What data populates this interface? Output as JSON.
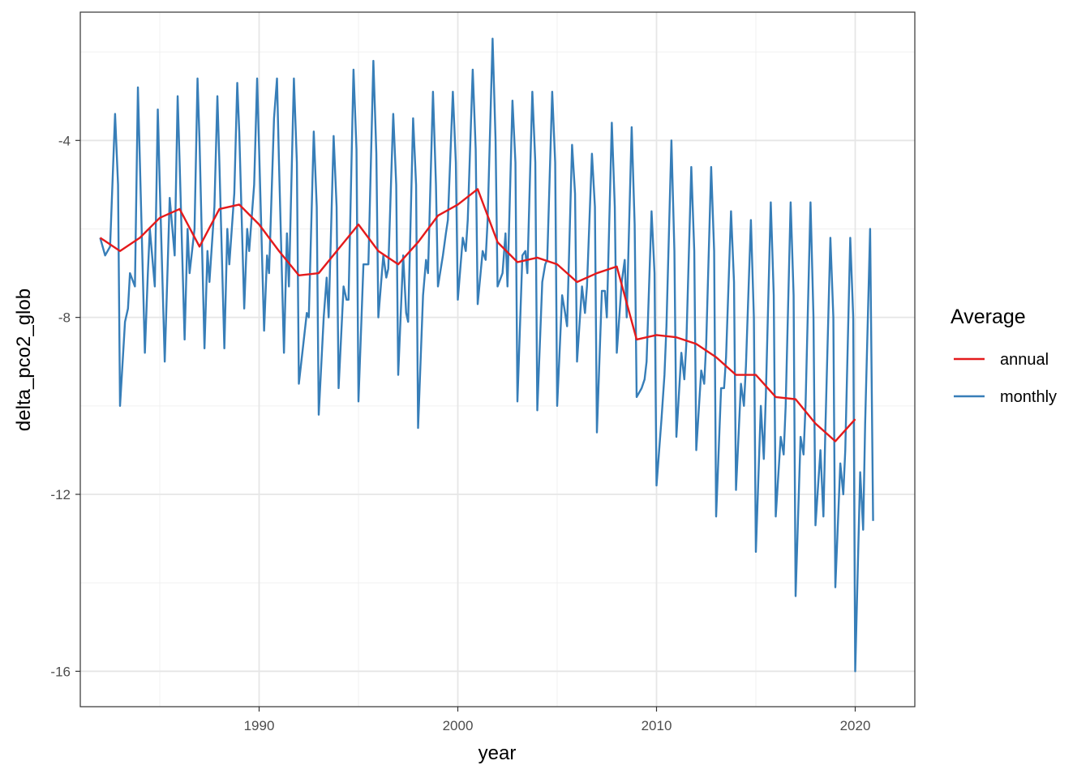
{
  "chart_data": {
    "type": "line",
    "xlabel": "year",
    "ylabel": "delta_pco2_glob",
    "xlim": [
      1981.0,
      2023.0
    ],
    "ylim": [
      -16.8,
      -1.1
    ],
    "x_ticks": [
      1990,
      2000,
      2010,
      2020
    ],
    "x_tick_labels": [
      "1990",
      "2000",
      "2010",
      "2020"
    ],
    "y_ticks": [
      -4,
      -8,
      -12,
      -16
    ],
    "y_tick_labels": [
      "-4",
      "-8",
      "-12",
      "-16"
    ],
    "grid": true,
    "legend": {
      "title": "Average",
      "position": "right"
    },
    "series": [
      {
        "name": "monthly",
        "color": "#377EB8",
        "x": [
          1982.0,
          1982.25,
          1982.5,
          1982.75,
          1982.9,
          1983.0,
          1983.25,
          1983.4,
          1983.5,
          1983.75,
          1983.9,
          1984.0,
          1984.25,
          1984.4,
          1984.5,
          1984.75,
          1984.9,
          1985.0,
          1985.25,
          1985.4,
          1985.5,
          1985.75,
          1985.9,
          1986.0,
          1986.25,
          1986.4,
          1986.5,
          1986.75,
          1986.9,
          1987.0,
          1987.25,
          1987.4,
          1987.5,
          1987.75,
          1987.9,
          1988.0,
          1988.25,
          1988.4,
          1988.5,
          1988.75,
          1988.9,
          1989.0,
          1989.25,
          1989.4,
          1989.5,
          1989.75,
          1989.9,
          1990.0,
          1990.25,
          1990.4,
          1990.5,
          1990.75,
          1990.9,
          1991.0,
          1991.25,
          1991.4,
          1991.5,
          1991.75,
          1991.9,
          1992.0,
          1992.25,
          1992.4,
          1992.5,
          1992.75,
          1992.9,
          1993.0,
          1993.25,
          1993.4,
          1993.5,
          1993.75,
          1993.9,
          1994.0,
          1994.25,
          1994.4,
          1994.5,
          1994.75,
          1994.9,
          1995.0,
          1995.25,
          1995.4,
          1995.5,
          1995.75,
          1995.9,
          1996.0,
          1996.25,
          1996.4,
          1996.5,
          1996.75,
          1996.9,
          1997.0,
          1997.25,
          1997.4,
          1997.5,
          1997.75,
          1997.9,
          1998.0,
          1998.25,
          1998.4,
          1998.5,
          1998.75,
          1998.9,
          1999.0,
          1999.25,
          1999.4,
          1999.5,
          1999.75,
          1999.9,
          2000.0,
          2000.25,
          2000.4,
          2000.5,
          2000.75,
          2000.9,
          2001.0,
          2001.25,
          2001.4,
          2001.5,
          2001.75,
          2001.9,
          2002.0,
          2002.25,
          2002.4,
          2002.5,
          2002.75,
          2002.9,
          2003.0,
          2003.25,
          2003.4,
          2003.5,
          2003.75,
          2003.9,
          2004.0,
          2004.25,
          2004.4,
          2004.5,
          2004.75,
          2004.9,
          2005.0,
          2005.25,
          2005.4,
          2005.5,
          2005.75,
          2005.9,
          2006.0,
          2006.25,
          2006.4,
          2006.5,
          2006.75,
          2006.9,
          2007.0,
          2007.25,
          2007.4,
          2007.5,
          2007.75,
          2007.9,
          2008.0,
          2008.25,
          2008.4,
          2008.5,
          2008.75,
          2008.9,
          2009.0,
          2009.25,
          2009.4,
          2009.5,
          2009.75,
          2009.9,
          2010.0,
          2010.25,
          2010.4,
          2010.5,
          2010.75,
          2010.9,
          2011.0,
          2011.25,
          2011.4,
          2011.5,
          2011.75,
          2011.9,
          2012.0,
          2012.25,
          2012.4,
          2012.5,
          2012.75,
          2012.9,
          2013.0,
          2013.25,
          2013.4,
          2013.5,
          2013.75,
          2013.9,
          2014.0,
          2014.25,
          2014.4,
          2014.5,
          2014.75,
          2014.9,
          2015.0,
          2015.25,
          2015.4,
          2015.5,
          2015.75,
          2015.9,
          2016.0,
          2016.25,
          2016.4,
          2016.5,
          2016.75,
          2016.9,
          2017.0,
          2017.25,
          2017.4,
          2017.5,
          2017.75,
          2017.9,
          2018.0,
          2018.25,
          2018.4,
          2018.5,
          2018.75,
          2018.9,
          2019.0,
          2019.25,
          2019.4,
          2019.5,
          2019.75,
          2019.9,
          2020.0,
          2020.25,
          2020.4,
          2020.5,
          2020.75,
          2020.9
        ],
        "values": [
          -6.2,
          -6.6,
          -6.4,
          -3.4,
          -5.0,
          -10.0,
          -8.1,
          -7.8,
          -7.0,
          -7.3,
          -2.8,
          -4.5,
          -8.8,
          -7.0,
          -6.0,
          -7.3,
          -3.3,
          -5.0,
          -9.0,
          -6.8,
          -5.3,
          -6.6,
          -3.0,
          -4.5,
          -8.5,
          -6.0,
          -7.0,
          -6.0,
          -2.6,
          -4.0,
          -8.7,
          -6.5,
          -7.2,
          -5.5,
          -3.0,
          -4.5,
          -8.7,
          -6.0,
          -6.8,
          -5.2,
          -2.7,
          -3.8,
          -7.8,
          -6.0,
          -6.5,
          -5.0,
          -2.6,
          -4.2,
          -8.3,
          -6.6,
          -7.0,
          -3.5,
          -2.6,
          -4.5,
          -8.8,
          -6.1,
          -7.3,
          -2.6,
          -4.5,
          -9.5,
          -8.5,
          -7.9,
          -8.0,
          -3.8,
          -5.5,
          -10.2,
          -8.0,
          -7.1,
          -8.0,
          -3.9,
          -5.5,
          -9.6,
          -7.3,
          -7.6,
          -7.6,
          -2.4,
          -4.2,
          -9.9,
          -6.8,
          -6.8,
          -6.8,
          -2.2,
          -4.3,
          -8.0,
          -6.6,
          -7.1,
          -6.9,
          -3.4,
          -5.0,
          -9.3,
          -6.6,
          -7.9,
          -8.1,
          -3.5,
          -5.0,
          -10.5,
          -7.5,
          -6.7,
          -7.0,
          -2.9,
          -5.0,
          -7.3,
          -6.6,
          -6.1,
          -5.8,
          -2.9,
          -4.5,
          -7.6,
          -6.2,
          -6.5,
          -5.8,
          -2.4,
          -4.2,
          -7.7,
          -6.5,
          -6.7,
          -5.8,
          -1.7,
          -4.0,
          -7.3,
          -7.0,
          -6.1,
          -7.3,
          -3.1,
          -4.5,
          -9.9,
          -6.6,
          -6.5,
          -7.0,
          -2.9,
          -4.5,
          -10.1,
          -7.2,
          -6.8,
          -6.7,
          -2.9,
          -4.5,
          -10.0,
          -7.5,
          -7.9,
          -8.2,
          -4.1,
          -5.2,
          -9.0,
          -7.3,
          -7.9,
          -7.3,
          -4.3,
          -5.5,
          -10.6,
          -7.4,
          -7.4,
          -8.0,
          -3.6,
          -5.5,
          -8.8,
          -7.2,
          -6.7,
          -8.0,
          -3.7,
          -5.9,
          -9.8,
          -9.6,
          -9.4,
          -9.0,
          -5.6,
          -7.0,
          -11.8,
          -10.3,
          -9.3,
          -8.2,
          -4.0,
          -6.5,
          -10.7,
          -8.8,
          -9.4,
          -8.6,
          -4.6,
          -6.5,
          -11.0,
          -9.2,
          -9.5,
          -8.6,
          -4.6,
          -6.5,
          -12.5,
          -9.6,
          -9.6,
          -8.9,
          -5.6,
          -7.2,
          -11.9,
          -9.5,
          -10.0,
          -9.1,
          -5.8,
          -8.0,
          -13.3,
          -10.0,
          -11.2,
          -9.8,
          -5.4,
          -7.5,
          -12.5,
          -10.7,
          -11.1,
          -10.0,
          -5.4,
          -7.5,
          -14.3,
          -10.7,
          -11.1,
          -10.0,
          -5.4,
          -8.0,
          -12.7,
          -11.0,
          -12.5,
          -10.5,
          -6.2,
          -8.0,
          -14.1,
          -11.3,
          -12.0,
          -11.0,
          -6.2,
          -8.0,
          -16.0,
          -11.5,
          -12.8,
          -10.4,
          -6.0,
          -12.6
        ]
      },
      {
        "name": "annual",
        "color": "#E41A1C",
        "x": [
          1982,
          1983,
          1984,
          1985,
          1986,
          1987,
          1988,
          1989,
          1990,
          1991,
          1992,
          1993,
          1994,
          1995,
          1996,
          1997,
          1998,
          1999,
          2000,
          2001,
          2002,
          2003,
          2004,
          2005,
          2006,
          2007,
          2008,
          2009,
          2010,
          2011,
          2012,
          2013,
          2014,
          2015,
          2016,
          2017,
          2018,
          2019,
          2020
        ],
        "values": [
          -6.2,
          -6.5,
          -6.2,
          -5.75,
          -5.55,
          -6.4,
          -5.55,
          -5.45,
          -5.9,
          -6.5,
          -7.05,
          -7.0,
          -6.45,
          -5.9,
          -6.5,
          -6.8,
          -6.3,
          -5.7,
          -5.45,
          -5.1,
          -6.3,
          -6.75,
          -6.65,
          -6.8,
          -7.2,
          -7.0,
          -6.85,
          -8.5,
          -8.4,
          -8.45,
          -8.6,
          -8.9,
          -9.3,
          -9.3,
          -9.8,
          -9.85,
          -10.4,
          -10.8,
          -10.3
        ]
      }
    ]
  }
}
